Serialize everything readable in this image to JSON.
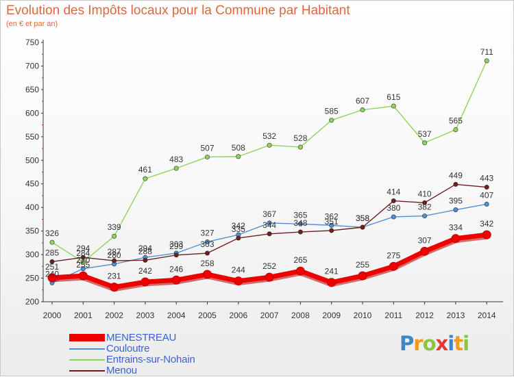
{
  "chart_data": {
    "type": "line",
    "title": "Evolution des Impôts locaux pour la Commune par Habitant",
    "subtitle": "(en € et par an)",
    "x": [
      "2000",
      "2001",
      "2002",
      "2003",
      "2004",
      "2005",
      "2006",
      "2007",
      "2008",
      "2009",
      "2010",
      "2011",
      "2012",
      "2013",
      "2014"
    ],
    "ylim": [
      200,
      750
    ],
    "yticks": [
      200,
      250,
      300,
      350,
      400,
      450,
      500,
      550,
      600,
      650,
      700,
      750
    ],
    "grid": false,
    "legend_position": "bottom-left",
    "series": [
      {
        "name": "MENESTREAU",
        "color": "#ee0000",
        "values": [
          251,
          255,
          231,
          242,
          246,
          258,
          244,
          252,
          265,
          241,
          255,
          275,
          307,
          334,
          342
        ]
      },
      {
        "name": "Couloutre",
        "color": "#4f8fd2",
        "values": [
          240,
          270,
          280,
          294,
          303,
          327,
          342,
          367,
          365,
          362,
          358,
          380,
          382,
          395,
          407
        ]
      },
      {
        "name": "Entrains-sur-Nohain",
        "color": "#8fd25a",
        "values": [
          326,
          284,
          339,
          461,
          483,
          507,
          508,
          532,
          528,
          585,
          607,
          615,
          537,
          565,
          711
        ]
      },
      {
        "name": "Menou",
        "color": "#6e1e1e",
        "values": [
          285,
          294,
          287,
          288,
          299,
          303,
          335,
          344,
          348,
          351,
          358,
          414,
          410,
          449,
          443
        ]
      }
    ]
  },
  "branding": {
    "logo_letters": [
      "P",
      "r",
      "o",
      "x",
      "i",
      "t",
      "i"
    ],
    "logo_colors": [
      "#3f86c4",
      "#f29a1a",
      "#8cc63f",
      "#e03a3a",
      "#3f86c4",
      "#f29a1a",
      "#8cc63f"
    ]
  }
}
